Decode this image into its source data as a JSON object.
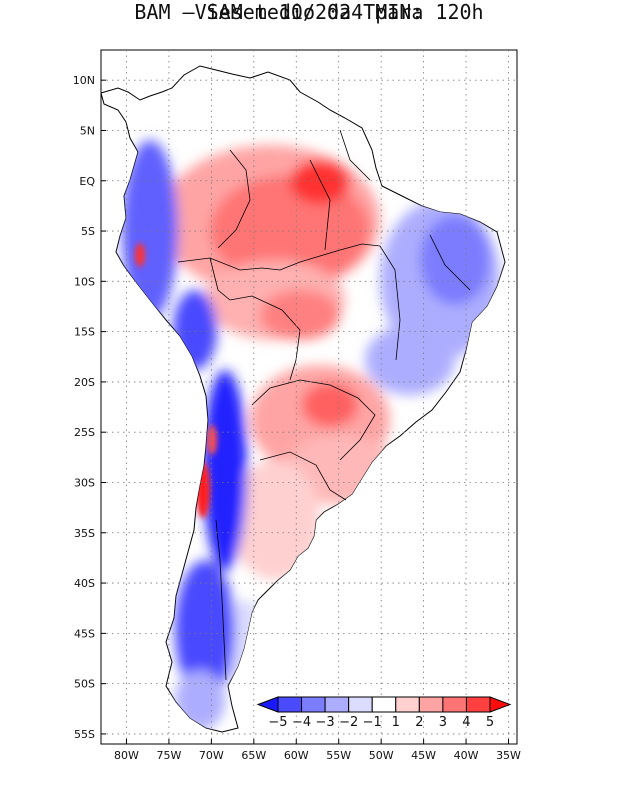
{
  "title": {
    "line1": "Vies medio da TMIN:",
    "line2": "BAM – SAMet 10/2024  para 120h"
  },
  "map": {
    "lon_range": [
      -83,
      -34
    ],
    "lat_range": [
      -56,
      13
    ],
    "lon_ticks": [
      {
        "value": -80,
        "label": "80W"
      },
      {
        "value": -75,
        "label": "75W"
      },
      {
        "value": -70,
        "label": "70W"
      },
      {
        "value": -65,
        "label": "65W"
      },
      {
        "value": -60,
        "label": "60W"
      },
      {
        "value": -55,
        "label": "55W"
      },
      {
        "value": -50,
        "label": "50W"
      },
      {
        "value": -45,
        "label": "45W"
      },
      {
        "value": -40,
        "label": "40W"
      },
      {
        "value": -35,
        "label": "35W"
      }
    ],
    "lat_ticks": [
      {
        "value": 10,
        "label": "10N"
      },
      {
        "value": 5,
        "label": "5N"
      },
      {
        "value": 0,
        "label": "EQ"
      },
      {
        "value": -5,
        "label": "5S"
      },
      {
        "value": -10,
        "label": "10S"
      },
      {
        "value": -15,
        "label": "15S"
      },
      {
        "value": -20,
        "label": "20S"
      },
      {
        "value": -25,
        "label": "25S"
      },
      {
        "value": -30,
        "label": "30S"
      },
      {
        "value": -35,
        "label": "35S"
      },
      {
        "value": -40,
        "label": "40S"
      },
      {
        "value": -45,
        "label": "45S"
      },
      {
        "value": -50,
        "label": "50S"
      },
      {
        "value": -55,
        "label": "55S"
      }
    ]
  },
  "colorbar": {
    "labels": [
      "−5",
      "−4",
      "−3",
      "−2",
      "−1",
      "1",
      "2",
      "3",
      "4",
      "5"
    ],
    "colors": [
      "#1a1aff",
      "#4a4aff",
      "#7c7cff",
      "#adadff",
      "#dcdcff",
      "#ffffff",
      "#ffd0d0",
      "#ffa4a4",
      "#ff7575",
      "#ff4040",
      "#ff0d0d"
    ]
  }
}
